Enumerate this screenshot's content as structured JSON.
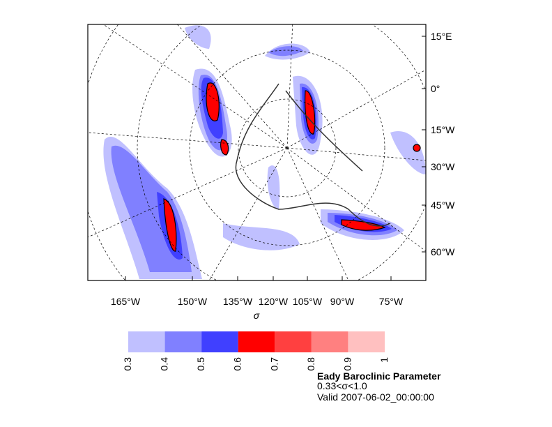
{
  "map": {
    "x_labels": [
      "165°W",
      "150°W",
      "135°W",
      "120°W",
      "105°W",
      "90°W",
      "75°W"
    ],
    "y_labels": [
      "15°E",
      "0°",
      "15°W",
      "30°W",
      "45°W",
      "60°W"
    ],
    "x_axis_label": "σ"
  },
  "colorbar": {
    "levels": [
      0.3,
      0.4,
      0.5,
      0.6,
      0.7,
      0.8,
      0.9,
      1
    ],
    "colors": [
      "#c0c0ff",
      "#8080ff",
      "#4040ff",
      "#ff0000",
      "#ff4040",
      "#ff8080",
      "#ffc0c0"
    ]
  },
  "title": "Eady Baroclinic Parameter",
  "subtitle": "0.33<σ<1.0",
  "valid": "Valid 2007-06-02_00:00:00"
}
